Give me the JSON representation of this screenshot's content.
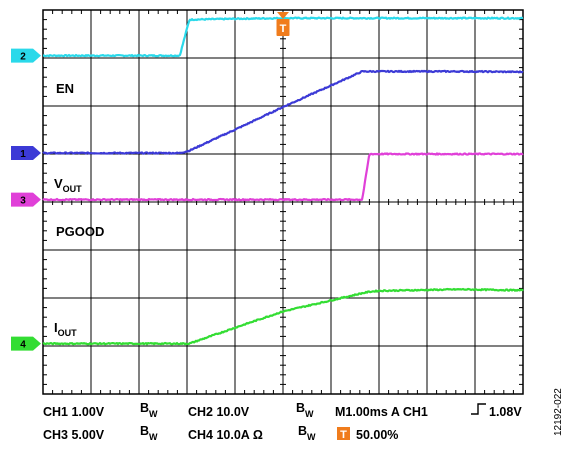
{
  "chart_data": {
    "type": "line",
    "title": "",
    "xlabel": "",
    "ylabel": "",
    "grid": true,
    "x_divisions": 10,
    "y_divisions": 8,
    "time_per_div_ms": 1.0,
    "x": [
      0,
      2,
      2.85,
      3.05,
      4.2,
      5.0,
      6.65,
      6.8,
      7.0,
      8.7,
      10
    ],
    "series": [
      {
        "name": "EN",
        "channel": "2",
        "color": "#2ad9ea",
        "scale": "10.0V",
        "values": [
          7.05,
          7.05,
          7.05,
          7.8,
          7.82,
          7.83,
          7.83,
          7.83,
          7.83,
          7.83,
          7.83
        ]
      },
      {
        "name": "VOUT",
        "channel": "1",
        "color": "#3c3ad6",
        "scale": "1.00V",
        "values": [
          5.02,
          5.02,
          5.02,
          5.07,
          5.6,
          5.98,
          6.72,
          6.72,
          6.72,
          6.72,
          6.71
        ]
      },
      {
        "name": "PGOOD",
        "channel": "3",
        "color": "#e040d8",
        "scale": "5.00V",
        "values": [
          4.05,
          4.05,
          4.05,
          4.05,
          4.05,
          4.05,
          4.05,
          5.0,
          5.0,
          5.0,
          5.0
        ]
      },
      {
        "name": "IOUT",
        "channel": "4",
        "color": "#33dd33",
        "scale": "10.0A",
        "values": [
          1.05,
          1.05,
          1.05,
          1.05,
          1.45,
          1.72,
          2.1,
          2.13,
          2.15,
          2.18,
          2.16
        ]
      }
    ],
    "labels": [
      {
        "main": "EN",
        "sub": ""
      },
      {
        "main": "V",
        "sub": "OUT"
      },
      {
        "main": "PGOOD",
        "sub": ""
      },
      {
        "main": "I",
        "sub": "OUT"
      }
    ],
    "trigger": {
      "letter": "T",
      "position_div": 5.0,
      "color": "#f07c1c"
    },
    "status": {
      "ch1": "CH1  1.00V",
      "ch2": "CH2  10.0V",
      "ch3": "CH3  5.00V",
      "ch4": "CH4  10.0A Ω",
      "bw_main": "B",
      "bw_sub": "W",
      "timebase": "M1.00ms  A CH1",
      "trig_level": "1.08V",
      "trig_badge": "T",
      "trig_pos": "50.00%"
    },
    "figure_id": "12192-022"
  }
}
